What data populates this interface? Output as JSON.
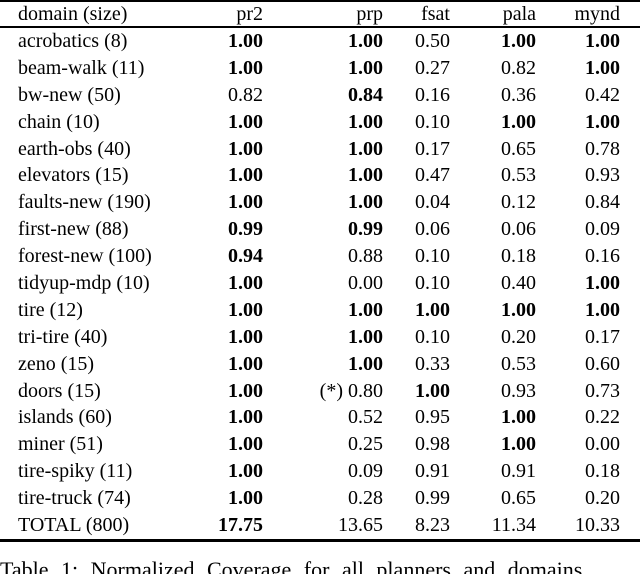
{
  "colors": {
    "background": "#ffffff",
    "text": "#000000",
    "rule": "#000000"
  },
  "table": {
    "columns": [
      {
        "label": "domain (size)",
        "align": "left"
      },
      {
        "label": "pr2",
        "align": "right"
      },
      {
        "label": "prp",
        "align": "right"
      },
      {
        "label": "fsat",
        "align": "right"
      },
      {
        "label": "pala",
        "align": "right"
      },
      {
        "label": "mynd",
        "align": "right"
      }
    ],
    "rows": [
      {
        "domain": "acrobatics (8)",
        "values": [
          {
            "text": "1.00",
            "bold": true
          },
          {
            "text": "1.00",
            "bold": true
          },
          {
            "text": "0.50",
            "bold": false
          },
          {
            "text": "1.00",
            "bold": true
          },
          {
            "text": "1.00",
            "bold": true
          }
        ]
      },
      {
        "domain": "beam-walk (11)",
        "values": [
          {
            "text": "1.00",
            "bold": true
          },
          {
            "text": "1.00",
            "bold": true
          },
          {
            "text": "0.27",
            "bold": false
          },
          {
            "text": "0.82",
            "bold": false
          },
          {
            "text": "1.00",
            "bold": true
          }
        ]
      },
      {
        "domain": "bw-new (50)",
        "values": [
          {
            "text": "0.82",
            "bold": false
          },
          {
            "text": "0.84",
            "bold": true
          },
          {
            "text": "0.16",
            "bold": false
          },
          {
            "text": "0.36",
            "bold": false
          },
          {
            "text": "0.42",
            "bold": false
          }
        ]
      },
      {
        "domain": "chain (10)",
        "values": [
          {
            "text": "1.00",
            "bold": true
          },
          {
            "text": "1.00",
            "bold": true
          },
          {
            "text": "0.10",
            "bold": false
          },
          {
            "text": "1.00",
            "bold": true
          },
          {
            "text": "1.00",
            "bold": true
          }
        ]
      },
      {
        "domain": "earth-obs (40)",
        "values": [
          {
            "text": "1.00",
            "bold": true
          },
          {
            "text": "1.00",
            "bold": true
          },
          {
            "text": "0.17",
            "bold": false
          },
          {
            "text": "0.65",
            "bold": false
          },
          {
            "text": "0.78",
            "bold": false
          }
        ]
      },
      {
        "domain": "elevators (15)",
        "values": [
          {
            "text": "1.00",
            "bold": true
          },
          {
            "text": "1.00",
            "bold": true
          },
          {
            "text": "0.47",
            "bold": false
          },
          {
            "text": "0.53",
            "bold": false
          },
          {
            "text": "0.93",
            "bold": false
          }
        ]
      },
      {
        "domain": "faults-new (190)",
        "values": [
          {
            "text": "1.00",
            "bold": true
          },
          {
            "text": "1.00",
            "bold": true
          },
          {
            "text": "0.04",
            "bold": false
          },
          {
            "text": "0.12",
            "bold": false
          },
          {
            "text": "0.84",
            "bold": false
          }
        ]
      },
      {
        "domain": "first-new (88)",
        "values": [
          {
            "text": "0.99",
            "bold": true
          },
          {
            "text": "0.99",
            "bold": true
          },
          {
            "text": "0.06",
            "bold": false
          },
          {
            "text": "0.06",
            "bold": false
          },
          {
            "text": "0.09",
            "bold": false
          }
        ]
      },
      {
        "domain": "forest-new (100)",
        "values": [
          {
            "text": "0.94",
            "bold": true
          },
          {
            "text": "0.88",
            "bold": false
          },
          {
            "text": "0.10",
            "bold": false
          },
          {
            "text": "0.18",
            "bold": false
          },
          {
            "text": "0.16",
            "bold": false
          }
        ]
      },
      {
        "domain": "tidyup-mdp (10)",
        "values": [
          {
            "text": "1.00",
            "bold": true
          },
          {
            "text": "0.00",
            "bold": false
          },
          {
            "text": "0.10",
            "bold": false
          },
          {
            "text": "0.40",
            "bold": false
          },
          {
            "text": "1.00",
            "bold": true
          }
        ]
      },
      {
        "domain": "tire (12)",
        "values": [
          {
            "text": "1.00",
            "bold": true
          },
          {
            "text": "1.00",
            "bold": true
          },
          {
            "text": "1.00",
            "bold": true
          },
          {
            "text": "1.00",
            "bold": true
          },
          {
            "text": "1.00",
            "bold": true
          }
        ]
      },
      {
        "domain": "tri-tire (40)",
        "values": [
          {
            "text": "1.00",
            "bold": true
          },
          {
            "text": "1.00",
            "bold": true
          },
          {
            "text": "0.10",
            "bold": false
          },
          {
            "text": "0.20",
            "bold": false
          },
          {
            "text": "0.17",
            "bold": false
          }
        ]
      },
      {
        "domain": "zeno (15)",
        "values": [
          {
            "text": "1.00",
            "bold": true
          },
          {
            "text": "1.00",
            "bold": true
          },
          {
            "text": "0.33",
            "bold": false
          },
          {
            "text": "0.53",
            "bold": false
          },
          {
            "text": "0.60",
            "bold": false
          }
        ]
      },
      {
        "domain": "doors (15)",
        "values": [
          {
            "text": "1.00",
            "bold": true
          },
          {
            "text": "(*) 0.80",
            "bold": false
          },
          {
            "text": "1.00",
            "bold": true
          },
          {
            "text": "0.93",
            "bold": false
          },
          {
            "text": "0.73",
            "bold": false
          }
        ]
      },
      {
        "domain": "islands (60)",
        "values": [
          {
            "text": "1.00",
            "bold": true
          },
          {
            "text": "0.52",
            "bold": false
          },
          {
            "text": "0.95",
            "bold": false
          },
          {
            "text": "1.00",
            "bold": true
          },
          {
            "text": "0.22",
            "bold": false
          }
        ]
      },
      {
        "domain": "miner (51)",
        "values": [
          {
            "text": "1.00",
            "bold": true
          },
          {
            "text": "0.25",
            "bold": false
          },
          {
            "text": "0.98",
            "bold": false
          },
          {
            "text": "1.00",
            "bold": true
          },
          {
            "text": "0.00",
            "bold": false
          }
        ]
      },
      {
        "domain": "tire-spiky (11)",
        "values": [
          {
            "text": "1.00",
            "bold": true
          },
          {
            "text": "0.09",
            "bold": false
          },
          {
            "text": "0.91",
            "bold": false
          },
          {
            "text": "0.91",
            "bold": false
          },
          {
            "text": "0.18",
            "bold": false
          }
        ]
      },
      {
        "domain": "tire-truck (74)",
        "values": [
          {
            "text": "1.00",
            "bold": true
          },
          {
            "text": "0.28",
            "bold": false
          },
          {
            "text": "0.99",
            "bold": false
          },
          {
            "text": "0.65",
            "bold": false
          },
          {
            "text": "0.20",
            "bold": false
          }
        ]
      },
      {
        "domain": "TOTAL (800)",
        "values": [
          {
            "text": "17.75",
            "bold": true
          },
          {
            "text": "13.65",
            "bold": false
          },
          {
            "text": "8.23",
            "bold": false
          },
          {
            "text": "11.34",
            "bold": false
          },
          {
            "text": "10.33",
            "bold": false
          }
        ]
      }
    ]
  },
  "caption": "Table 1: Normalized Coverage for all planners and domains"
}
